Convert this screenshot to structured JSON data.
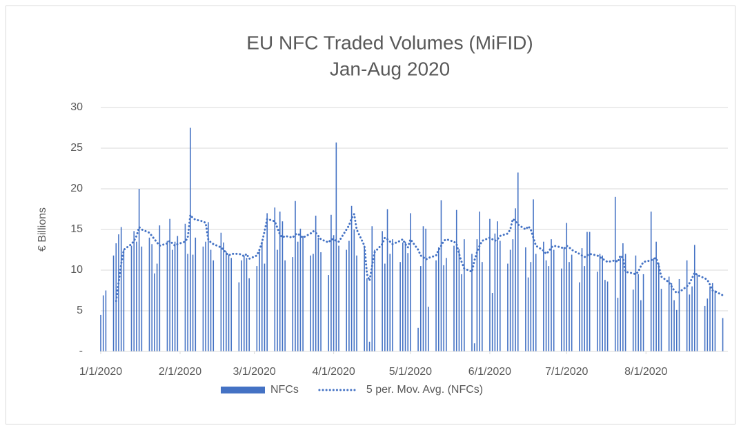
{
  "chart_data": {
    "type": "bar",
    "title": "EU NFC Traded Volumes (MiFID)",
    "subtitle": "Jan-Aug 2020",
    "ylabel": "€ Billions",
    "ylim": [
      0,
      30
    ],
    "yticks": [
      {
        "value": 0,
        "label": "-"
      },
      5,
      10,
      15,
      20,
      25,
      30
    ],
    "xlim": [
      "1/1/2020",
      "9/2/2020"
    ],
    "xticks": [
      "1/1/2020",
      "2/1/2020",
      "3/1/2020",
      "4/1/2020",
      "5/1/2020",
      "6/1/2020",
      "7/1/2020",
      "8/1/2020"
    ],
    "grid": true,
    "legend": "bottom",
    "x": [
      "1/1/2020",
      "1/2/2020",
      "1/3/2020",
      "1/6/2020",
      "1/7/2020",
      "1/8/2020",
      "1/9/2020",
      "1/10/2020",
      "1/13/2020",
      "1/14/2020",
      "1/15/2020",
      "1/16/2020",
      "1/17/2020",
      "1/20/2020",
      "1/21/2020",
      "1/22/2020",
      "1/23/2020",
      "1/24/2020",
      "1/27/2020",
      "1/28/2020",
      "1/29/2020",
      "1/30/2020",
      "1/31/2020",
      "2/3/2020",
      "2/4/2020",
      "2/5/2020",
      "2/6/2020",
      "2/7/2020",
      "2/10/2020",
      "2/11/2020",
      "2/12/2020",
      "2/13/2020",
      "2/14/2020",
      "2/17/2020",
      "2/18/2020",
      "2/19/2020",
      "2/20/2020",
      "2/21/2020",
      "2/24/2020",
      "2/25/2020",
      "2/26/2020",
      "2/27/2020",
      "2/28/2020",
      "3/2/2020",
      "3/3/2020",
      "3/4/2020",
      "3/5/2020",
      "3/6/2020",
      "3/9/2020",
      "3/10/2020",
      "3/11/2020",
      "3/12/2020",
      "3/13/2020",
      "3/16/2020",
      "3/17/2020",
      "3/18/2020",
      "3/19/2020",
      "3/20/2020",
      "3/23/2020",
      "3/24/2020",
      "3/25/2020",
      "3/26/2020",
      "3/27/2020",
      "3/30/2020",
      "3/31/2020",
      "4/1/2020",
      "4/2/2020",
      "4/3/2020",
      "4/6/2020",
      "4/7/2020",
      "4/8/2020",
      "4/9/2020",
      "4/10/2020",
      "4/13/2020",
      "4/14/2020",
      "4/15/2020",
      "4/16/2020",
      "4/17/2020",
      "4/20/2020",
      "4/21/2020",
      "4/22/2020",
      "4/23/2020",
      "4/24/2020",
      "4/27/2020",
      "4/28/2020",
      "4/29/2020",
      "4/30/2020",
      "5/1/2020",
      "5/4/2020",
      "5/5/2020",
      "5/6/2020",
      "5/7/2020",
      "5/8/2020",
      "5/11/2020",
      "5/12/2020",
      "5/13/2020",
      "5/14/2020",
      "5/15/2020",
      "5/18/2020",
      "5/19/2020",
      "5/20/2020",
      "5/21/2020",
      "5/22/2020",
      "5/25/2020",
      "5/26/2020",
      "5/27/2020",
      "5/28/2020",
      "5/29/2020",
      "6/1/2020",
      "6/2/2020",
      "6/3/2020",
      "6/4/2020",
      "6/5/2020",
      "6/8/2020",
      "6/9/2020",
      "6/10/2020",
      "6/11/2020",
      "6/12/2020",
      "6/15/2020",
      "6/16/2020",
      "6/17/2020",
      "6/18/2020",
      "6/19/2020",
      "6/22/2020",
      "6/23/2020",
      "6/24/2020",
      "6/25/2020",
      "6/26/2020",
      "6/29/2020",
      "6/30/2020",
      "7/1/2020",
      "7/2/2020",
      "7/3/2020",
      "7/6/2020",
      "7/7/2020",
      "7/8/2020",
      "7/9/2020",
      "7/10/2020",
      "7/13/2020",
      "7/14/2020",
      "7/15/2020",
      "7/16/2020",
      "7/17/2020",
      "7/20/2020",
      "7/21/2020",
      "7/22/2020",
      "7/23/2020",
      "7/24/2020",
      "7/27/2020",
      "7/28/2020",
      "7/29/2020",
      "7/30/2020",
      "7/31/2020",
      "8/3/2020",
      "8/4/2020",
      "8/5/2020",
      "8/6/2020",
      "8/7/2020",
      "8/10/2020",
      "8/11/2020",
      "8/12/2020",
      "8/13/2020",
      "8/14/2020",
      "8/17/2020",
      "8/18/2020",
      "8/19/2020",
      "8/20/2020",
      "8/21/2020",
      "8/24/2020",
      "8/25/2020",
      "8/26/2020",
      "8/27/2020",
      "8/28/2020",
      "8/31/2020"
    ],
    "series": [
      {
        "name": "NFCs",
        "type": "bar",
        "color": "#4472c4",
        "values": [
          4.5,
          6.9,
          7.5,
          11.8,
          13.3,
          14.4,
          15.3,
          12.5,
          13.0,
          14.8,
          13.5,
          20.0,
          12.9,
          14.0,
          13.2,
          9.6,
          10.8,
          15.5,
          13.6,
          16.3,
          12.5,
          13.5,
          14.2,
          15.7,
          12.0,
          27.5,
          11.9,
          14.0,
          12.9,
          13.5,
          15.9,
          12.5,
          11.2,
          14.6,
          13.4,
          12.3,
          11.9,
          11.5,
          8.5,
          11.2,
          11.8,
          11.5,
          9.0,
          10.5,
          12.3,
          13.5,
          10.8,
          17.0,
          17.7,
          12.5,
          17.2,
          16.0,
          11.2,
          11.6,
          18.5,
          13.5,
          15.1,
          14.2,
          11.8,
          12.0,
          16.7,
          14.0,
          12.2,
          9.4,
          16.8,
          14.3,
          25.7,
          13.0,
          12.5,
          13.6,
          17.9,
          15.0,
          11.8,
          13.0,
          9.0,
          1.2,
          15.4,
          12.5,
          14.8,
          10.8,
          17.5,
          12.0,
          13.8,
          11.0,
          13.4,
          13.5,
          12.1,
          17.0,
          2.9,
          10.5,
          15.4,
          15.1,
          5.5,
          11.2,
          12.8,
          18.6,
          10.6,
          11.5,
          13.0,
          17.4,
          12.6,
          9.5,
          13.8,
          12.0,
          1.0,
          13.8,
          17.2,
          11.0,
          16.3,
          7.2,
          14.5,
          16.0,
          13.6,
          10.8,
          12.5,
          13.8,
          17.6,
          22.0,
          12.8,
          9.1,
          11.0,
          18.7,
          12.0,
          13.5,
          11.2,
          10.5,
          13.8,
          12.5,
          10.2,
          12.8,
          15.8,
          11.0,
          11.9,
          8.5,
          12.7,
          10.5,
          14.7,
          14.7,
          9.8,
          12.0,
          11.8,
          8.8,
          8.6,
          19.0,
          6.6,
          11.5,
          13.3,
          12.0,
          7.6,
          11.8,
          9.5,
          6.3,
          9.5,
          17.2,
          11.5,
          13.5,
          10.9,
          7.7,
          9.2,
          8.4,
          6.3,
          5.1,
          8.9,
          11.2,
          7.0,
          8.0,
          13.1,
          9.5,
          5.6,
          6.5,
          8.0,
          8.4,
          7.5,
          4.1
        ]
      },
      {
        "name": "5 per. Mov. Avg. (NFCs)",
        "type": "line",
        "color": "#4472c4",
        "values": [
          null,
          null,
          null,
          null,
          6.2,
          8.5,
          10.8,
          12.5,
          13.2,
          13.6,
          14.2,
          15.3,
          15.0,
          14.6,
          14.2,
          13.8,
          13.4,
          13.0,
          13.3,
          13.6,
          13.3,
          13.0,
          13.2,
          13.5,
          14.0,
          16.8,
          16.4,
          16.2,
          16.0,
          15.8,
          13.8,
          13.4,
          13.2,
          12.8,
          12.5,
          12.1,
          11.8,
          12.0,
          12.0,
          11.9,
          11.7,
          12.0,
          11.4,
          11.8,
          12.5,
          13.4,
          14.8,
          16.3,
          16.0,
          15.2,
          14.4,
          14.0,
          14.2,
          14.0,
          14.4,
          14.5,
          14.2,
          14.0,
          14.5,
          14.8,
          14.6,
          14.2,
          13.8,
          13.4,
          13.8,
          13.8,
          13.6,
          13.5,
          15.0,
          15.5,
          16.4,
          16.9,
          15.0,
          13.0,
          9.5,
          8.7,
          10.5,
          12.2,
          13.2,
          14.0,
          13.8,
          13.5,
          13.2,
          13.6,
          13.8,
          13.2,
          12.8,
          13.8,
          12.5,
          11.8,
          11.6,
          11.3,
          11.5,
          11.8,
          12.5,
          13.0,
          13.6,
          13.8,
          13.5,
          13.2,
          12.0,
          11.0,
          10.2,
          9.8,
          11.2,
          12.2,
          13.0,
          13.6,
          14.0,
          13.8,
          13.6,
          13.8,
          14.2,
          14.5,
          15.0,
          16.3,
          16.0,
          15.6,
          15.0,
          15.4,
          15.0,
          14.0,
          13.0,
          12.4,
          12.0,
          12.3,
          12.8,
          13.0,
          12.8,
          12.6,
          13.0,
          12.8,
          12.5,
          12.0,
          11.8,
          11.6,
          11.8,
          12.0,
          11.8,
          11.6,
          11.4,
          11.2,
          11.0,
          11.2,
          11.0,
          11.8,
          11.5,
          9.8,
          9.6,
          9.5,
          9.8,
          10.5,
          11.0,
          11.2,
          11.4,
          11.5,
          10.5,
          9.2,
          8.5,
          8.0,
          7.5,
          7.2,
          7.3,
          8.0,
          8.4,
          9.0,
          9.7,
          9.4,
          9.0,
          8.8,
          8.2,
          7.5,
          7.4,
          6.9
        ]
      }
    ]
  }
}
